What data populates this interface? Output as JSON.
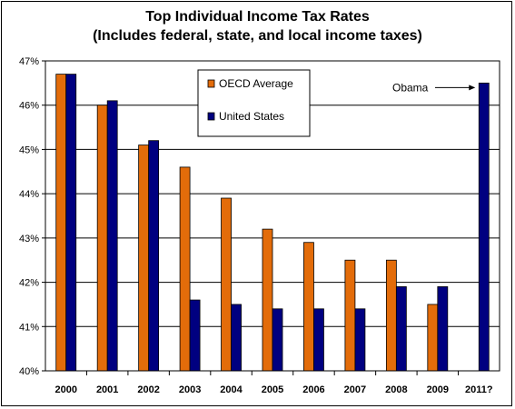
{
  "chart_data": {
    "type": "bar",
    "title": "Top Individual Income Tax Rates",
    "subtitle": "(Includes federal, state, and local income taxes)",
    "categories": [
      "2000",
      "2001",
      "2002",
      "2003",
      "2004",
      "2005",
      "2006",
      "2007",
      "2008",
      "2009",
      "2011?"
    ],
    "series": [
      {
        "name": "OECD Average",
        "color": "#E36C0A",
        "values": [
          46.7,
          46.0,
          45.1,
          44.6,
          43.9,
          43.2,
          42.9,
          42.5,
          42.5,
          41.5,
          null
        ]
      },
      {
        "name": "United States",
        "color": "#000080",
        "values": [
          46.7,
          46.1,
          45.2,
          41.6,
          41.5,
          41.4,
          41.4,
          41.4,
          41.9,
          41.9,
          46.5
        ]
      }
    ],
    "ylim": [
      40,
      47
    ],
    "yticks": [
      "40%",
      "41%",
      "42%",
      "43%",
      "44%",
      "45%",
      "46%",
      "47%"
    ],
    "grid": true,
    "legend_position": "top-center",
    "annotation": {
      "text": "Obama",
      "category": "2011?",
      "series": "United States"
    },
    "xlabel": "",
    "ylabel": ""
  }
}
